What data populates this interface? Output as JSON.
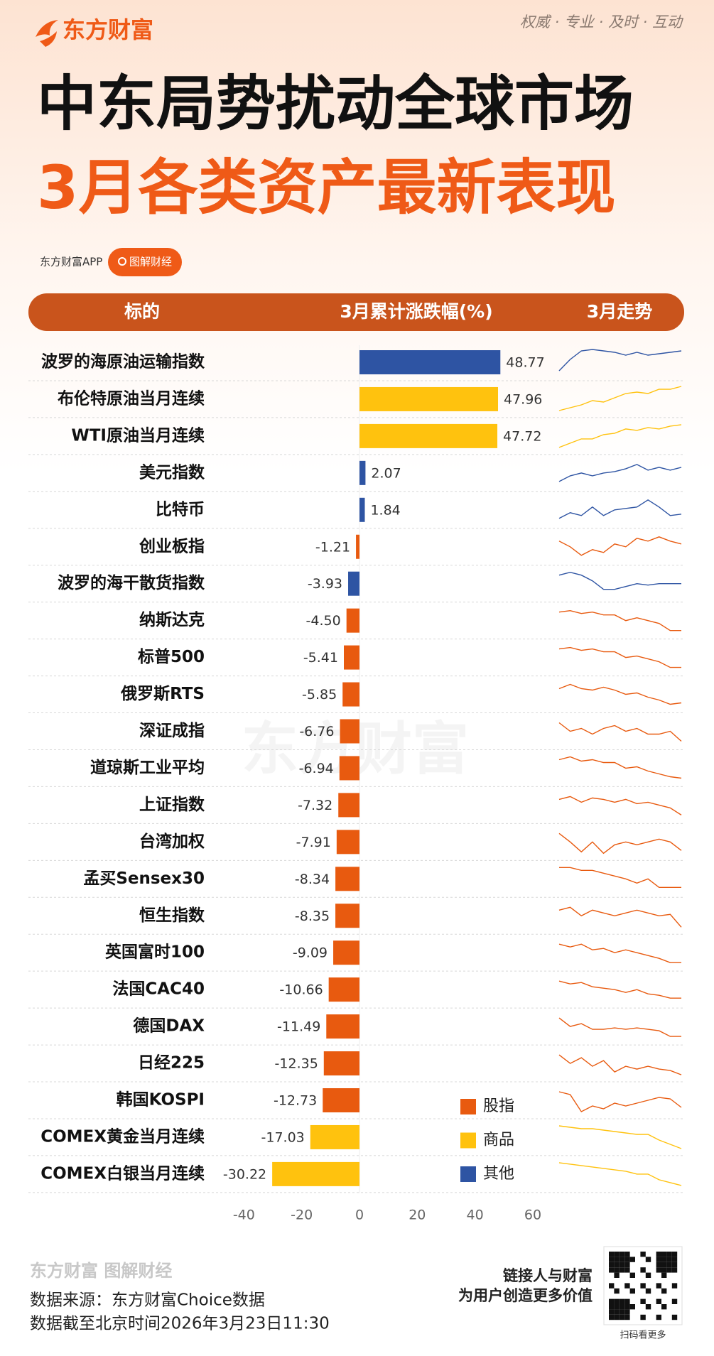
{
  "header": {
    "brand": "东方财富",
    "slogan": "权威 · 专业 · 及时 · 互动",
    "title": "中东局势扰动全球市场",
    "subtitle": "3月各类资产最新表现",
    "app": "东方财富APP",
    "tag": "图解财经"
  },
  "chart_data": {
    "type": "bar",
    "orientation": "horizontal",
    "columns": [
      "标的",
      "3月累计涨跌幅(%)",
      "3月走势"
    ],
    "categories": [
      "波罗的海原油运输指数",
      "布伦特原油当月连续",
      "WTI原油当月连续",
      "美元指数",
      "比特币",
      "创业板指",
      "波罗的海干散货指数",
      "纳斯达克",
      "标普500",
      "俄罗斯RTS",
      "深证成指",
      "道琼斯工业平均",
      "上证指数",
      "台湾加权",
      "孟买Sensex30",
      "恒生指数",
      "英国富时100",
      "法国CAC40",
      "德国DAX",
      "日经225",
      "韩国KOSPI",
      "COMEX黄金当月连续",
      "COMEX白银当月连续"
    ],
    "series": [
      {
        "name": "股指",
        "color": "#e85a0f",
        "values": [
          null,
          null,
          null,
          null,
          null,
          -1.21,
          null,
          -4.5,
          -5.41,
          -5.85,
          -6.76,
          -6.94,
          -7.32,
          -7.91,
          -8.34,
          -8.35,
          -9.09,
          -10.66,
          -11.49,
          -12.35,
          -12.73,
          null,
          null
        ],
        "value_labels": [
          null,
          null,
          null,
          null,
          null,
          "-1.21",
          null,
          "-4.50",
          "-5.41",
          "-5.85",
          "-6.76",
          "-6.94",
          "-7.32",
          "-7.91",
          "-8.34",
          "-8.35",
          "-9.09",
          "-10.66",
          "-11.49",
          "-12.35",
          "-12.73",
          null,
          null
        ]
      },
      {
        "name": "商品",
        "color": "#ffc20e",
        "values": [
          null,
          47.96,
          47.72,
          null,
          null,
          null,
          null,
          null,
          null,
          null,
          null,
          null,
          null,
          null,
          null,
          null,
          null,
          null,
          null,
          null,
          null,
          -17.03,
          -30.22
        ],
        "value_labels": [
          null,
          "47.96",
          "47.72",
          null,
          null,
          null,
          null,
          null,
          null,
          null,
          null,
          null,
          null,
          null,
          null,
          null,
          null,
          null,
          null,
          null,
          null,
          "-17.03",
          "-30.22"
        ]
      },
      {
        "name": "其他",
        "color": "#2e54a3",
        "values": [
          48.77,
          null,
          null,
          2.07,
          1.84,
          null,
          -3.93,
          null,
          null,
          null,
          null,
          null,
          null,
          null,
          null,
          null,
          null,
          null,
          null,
          null,
          null,
          null,
          null
        ],
        "value_labels": [
          "48.77",
          null,
          null,
          "2.07",
          "1.84",
          null,
          "-3.93",
          null,
          null,
          null,
          null,
          null,
          null,
          null,
          null,
          null,
          null,
          null,
          null,
          null,
          null,
          null,
          null
        ]
      }
    ],
    "xlim": [
      -40,
      60
    ],
    "xticks": [
      -40,
      -20,
      0,
      20,
      40,
      60
    ],
    "trend_ylim": [
      0,
      10
    ],
    "trends": [
      [
        2,
        6,
        9,
        9.5,
        9,
        8.5,
        7.5,
        8.5,
        7.5,
        8,
        8.5,
        9
      ],
      [
        1,
        2,
        3,
        4.5,
        4,
        5.5,
        7,
        7.5,
        7,
        8.5,
        8.5,
        9.5
      ],
      [
        1,
        2.5,
        4,
        4,
        5.5,
        6,
        7.5,
        7,
        8,
        7.5,
        8.5,
        9
      ],
      [
        2,
        4,
        5,
        4,
        5,
        5.5,
        6.5,
        8,
        6,
        7,
        6,
        7
      ],
      [
        2,
        4,
        3,
        6,
        3,
        5,
        5.5,
        6,
        8.5,
        6,
        3,
        3.5
      ],
      [
        7,
        5,
        2,
        4,
        3,
        6,
        5,
        8,
        7,
        8.5,
        7,
        6
      ],
      [
        8,
        9,
        8,
        6,
        3,
        3,
        4,
        5,
        4.5,
        5,
        5,
        5
      ],
      [
        8,
        8.5,
        7.5,
        8,
        7,
        7,
        5,
        6,
        5,
        4,
        1.5,
        1.5
      ],
      [
        8,
        8.5,
        7.5,
        8,
        7,
        7,
        5,
        5.5,
        4.5,
        3.5,
        1.5,
        1.5
      ],
      [
        7,
        8.5,
        7,
        6.5,
        7.5,
        6.5,
        5,
        5.5,
        4,
        3,
        1.5,
        2
      ],
      [
        8,
        5,
        6,
        4,
        6,
        7,
        5,
        6,
        4,
        4,
        5,
        1.5
      ],
      [
        8,
        9,
        7.5,
        8,
        7,
        7,
        5,
        5.5,
        4,
        3,
        2,
        1.5
      ],
      [
        7,
        8,
        6,
        7.5,
        7,
        6,
        7,
        5.5,
        6,
        5,
        4,
        1.5
      ],
      [
        8,
        5,
        1.5,
        5,
        1,
        4,
        5,
        4,
        5,
        6,
        5,
        2
      ],
      [
        9,
        9,
        8,
        8,
        7,
        6,
        5,
        3.5,
        5,
        2,
        2,
        2
      ],
      [
        7,
        8,
        5,
        7,
        6,
        5,
        6,
        7,
        6,
        5,
        5.5,
        1
      ],
      [
        8,
        7,
        8,
        6,
        6.5,
        5,
        6,
        5,
        4,
        3,
        1.5,
        1.5
      ],
      [
        8,
        7,
        7.5,
        6,
        5.5,
        5,
        4,
        5,
        3.5,
        3,
        2,
        2
      ],
      [
        8,
        5,
        6,
        4,
        4,
        4.5,
        4,
        4.5,
        4,
        3.5,
        1.5,
        1.5
      ],
      [
        8,
        5,
        7,
        4,
        6,
        2,
        4,
        3,
        4,
        3,
        2.5,
        1
      ],
      [
        8,
        7,
        1,
        3,
        2,
        4,
        3,
        4,
        5,
        6,
        5.5,
        2.5
      ],
      [
        9,
        8.5,
        8,
        8,
        7.5,
        7,
        6.5,
        6,
        6,
        4,
        2.5,
        1
      ],
      [
        9,
        8.5,
        8,
        7.5,
        7,
        6.5,
        6,
        5,
        5,
        3,
        2,
        1
      ]
    ]
  },
  "footer": {
    "watermark": "东方财富",
    "brand_mark": "东方财富 图解财经",
    "source": "数据来源：东方财富Choice数据",
    "date": "数据截至北京时间2026年3月23日11:30",
    "slogan1": "链接人与财富",
    "slogan2": "为用户创造更多价值",
    "qr_caption": "扫码看更多"
  }
}
